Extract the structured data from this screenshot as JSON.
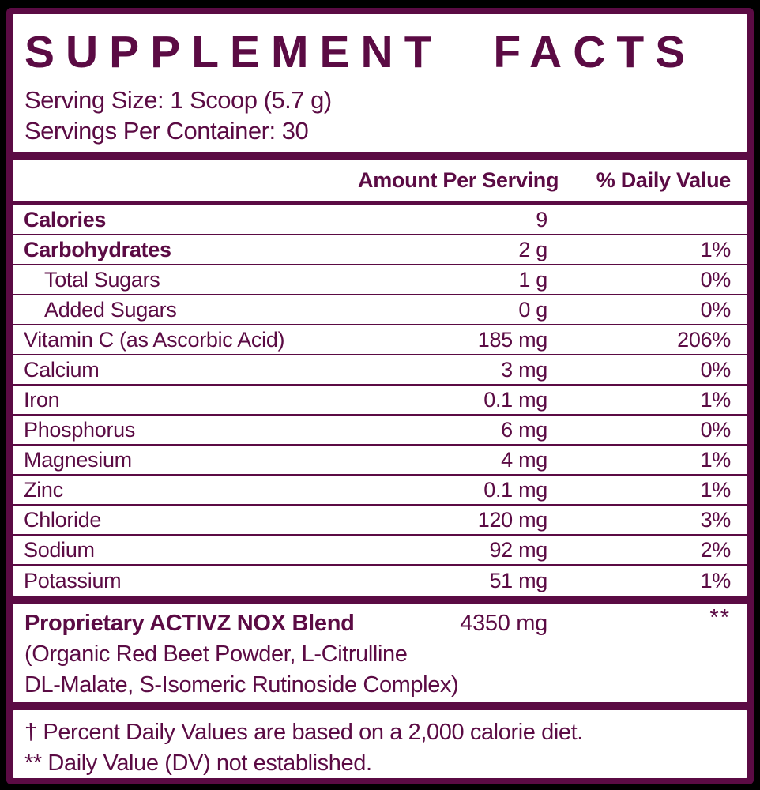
{
  "colors": {
    "brand_maroon": "#5b0b44",
    "panel_white": "#ffffff",
    "outer_black": "#000000"
  },
  "title": "SUPPLEMENT FACTS",
  "serving": {
    "size": "Serving Size: 1 Scoop (5.7 g)",
    "per_container": "Servings Per Container: 30"
  },
  "table": {
    "columns": [
      "Amount Per Serving",
      "% Daily Value"
    ],
    "rows": [
      {
        "name": "Calories",
        "amount": "9",
        "dv": "",
        "bold": true,
        "indent": false
      },
      {
        "name": "Carbohydrates",
        "amount": "2 g",
        "dv": "1%",
        "bold": true,
        "indent": false
      },
      {
        "name": "Total Sugars",
        "amount": "1 g",
        "dv": "0%",
        "bold": false,
        "indent": true
      },
      {
        "name": "Added Sugars",
        "amount": "0 g",
        "dv": "0%",
        "bold": false,
        "indent": true
      },
      {
        "name": "Vitamin C (as Ascorbic Acid)",
        "amount": "185 mg",
        "dv": "206%",
        "bold": false,
        "indent": false
      },
      {
        "name": "Calcium",
        "amount": "3 mg",
        "dv": "0%",
        "bold": false,
        "indent": false
      },
      {
        "name": "Iron",
        "amount": "0.1 mg",
        "dv": "1%",
        "bold": false,
        "indent": false
      },
      {
        "name": "Phosphorus",
        "amount": "6 mg",
        "dv": "0%",
        "bold": false,
        "indent": false
      },
      {
        "name": "Magnesium",
        "amount": "4 mg",
        "dv": "1%",
        "bold": false,
        "indent": false
      },
      {
        "name": "Zinc",
        "amount": "0.1 mg",
        "dv": "1%",
        "bold": false,
        "indent": false
      },
      {
        "name": "Chloride",
        "amount": "120 mg",
        "dv": "3%",
        "bold": false,
        "indent": false
      },
      {
        "name": "Sodium",
        "amount": "92 mg",
        "dv": "2%",
        "bold": false,
        "indent": false
      },
      {
        "name": "Potassium",
        "amount": "51 mg",
        "dv": "1%",
        "bold": false,
        "indent": false
      }
    ]
  },
  "blend": {
    "name": "Proprietary ACTIVZ NOX Blend",
    "amount": "4350 mg",
    "dv": "**",
    "ingredients_line1": "(Organic Red Beet Powder, L-Citrulline",
    "ingredients_line2": "DL-Malate, S-Isomeric Rutinoside Complex)"
  },
  "footnotes": [
    "† Percent Daily Values are based on a 2,000 calorie diet.",
    "** Daily Value (DV) not established."
  ]
}
